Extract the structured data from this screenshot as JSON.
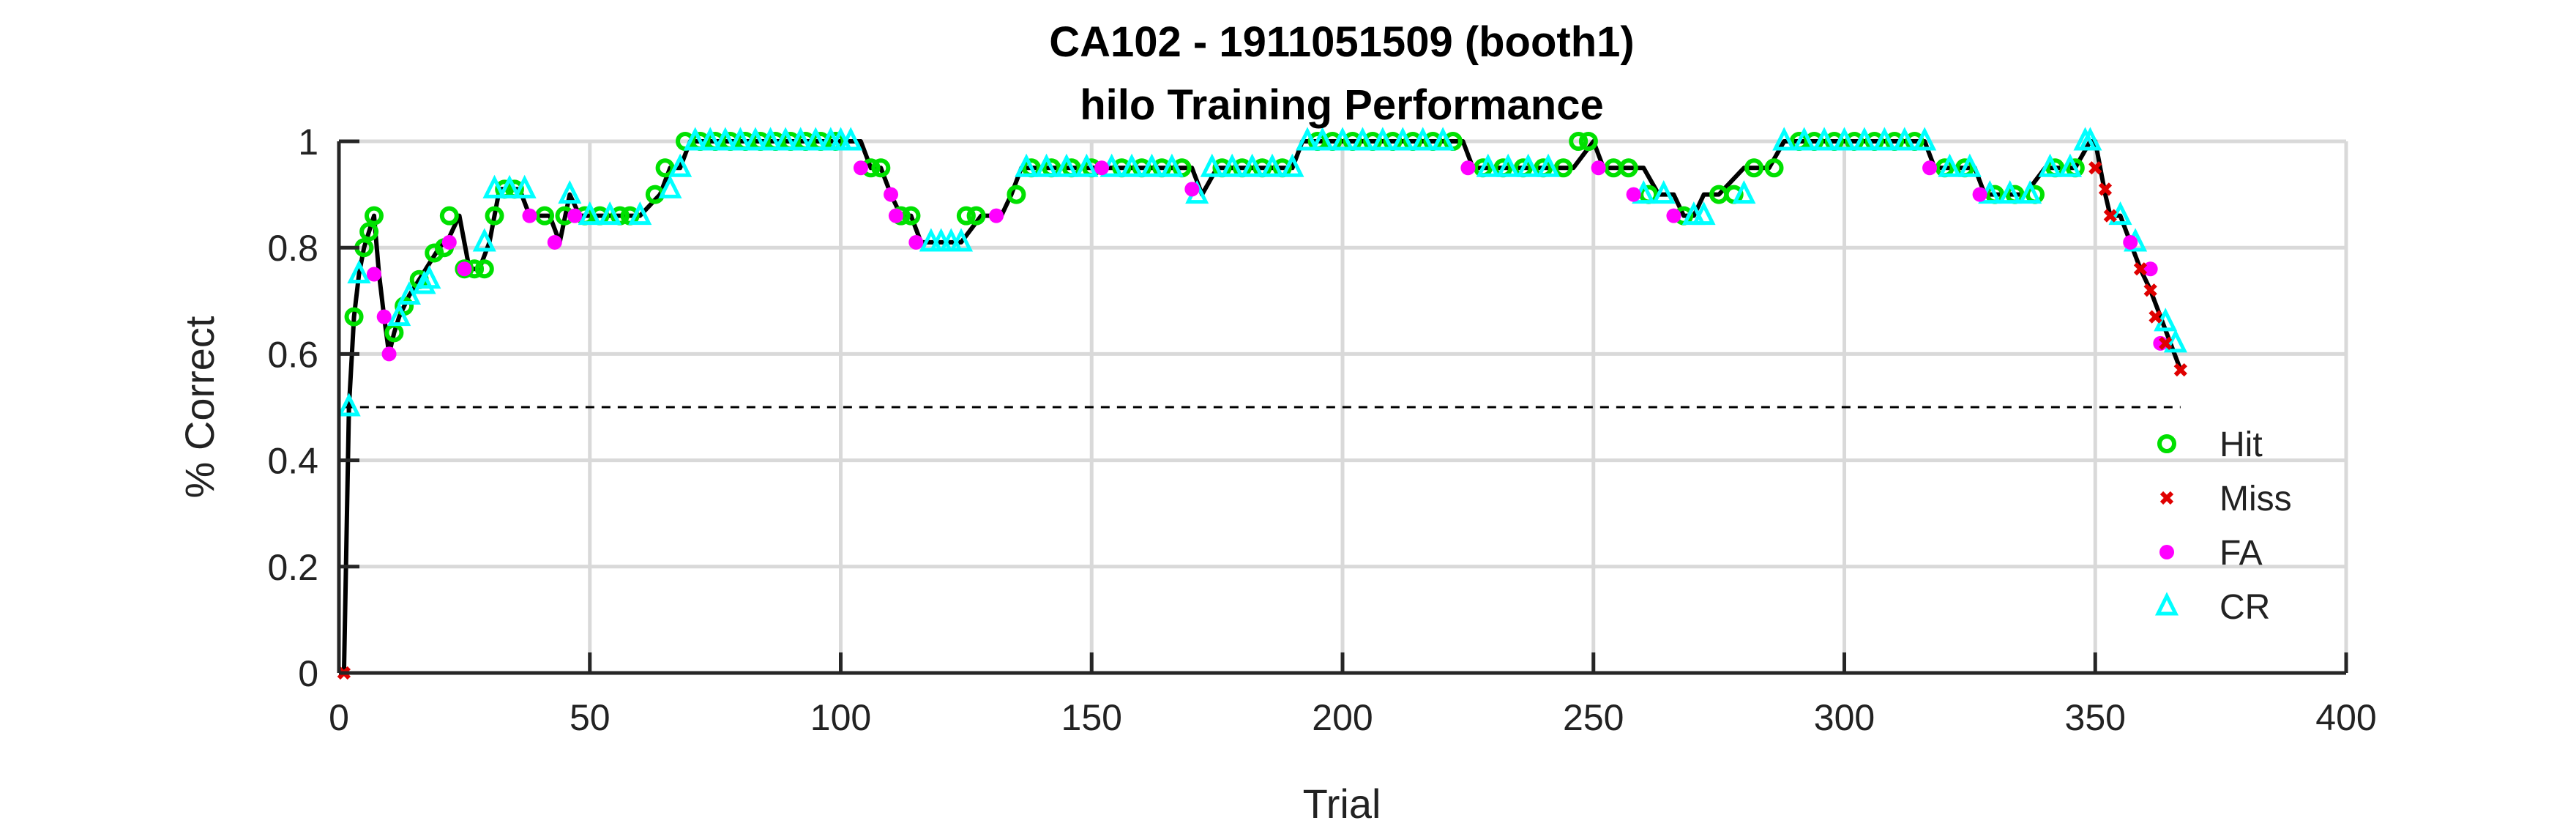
{
  "chart_data": {
    "type": "scatter",
    "title": "CA102 - 1911051509 (booth1)",
    "subtitle": "hilo Training Performance",
    "xlabel": "Trial",
    "ylabel": "% Correct",
    "xlim": [
      0,
      400
    ],
    "ylim": [
      0,
      1
    ],
    "xticks": [
      "0",
      "50",
      "100",
      "150",
      "200",
      "250",
      "300",
      "350",
      "400"
    ],
    "yticks": [
      "0",
      "0.2",
      "0.4",
      "0.6",
      "0.8",
      "1"
    ],
    "grid": true,
    "legend_position": "bottom-right",
    "chance_level": 0.5,
    "colors": {
      "Hit": "#00e000",
      "Miss": "#e00000",
      "FA": "#ff00ff",
      "CR": "#00ffff",
      "line": "#000000"
    },
    "line": {
      "x": [
        1,
        2,
        3,
        4,
        5,
        6,
        7,
        8,
        9,
        10,
        11,
        12,
        14,
        16,
        18,
        20,
        22,
        24,
        26,
        28,
        30,
        32,
        34,
        36,
        38,
        40,
        42,
        44,
        46,
        48,
        50,
        55,
        60,
        64,
        66,
        68,
        70,
        80,
        90,
        100,
        104,
        106,
        108,
        110,
        112,
        114,
        116,
        118,
        120,
        124,
        128,
        130,
        132,
        134,
        136,
        140,
        150,
        160,
        170,
        172,
        175,
        180,
        185,
        190,
        192,
        195,
        200,
        210,
        220,
        224,
        226,
        230,
        240,
        246,
        250,
        252,
        255,
        260,
        263,
        266,
        268,
        270,
        272,
        275,
        280,
        285,
        288,
        290,
        300,
        310,
        316,
        318,
        322,
        326,
        328,
        332,
        336,
        340,
        346,
        349,
        350,
        351,
        352,
        353,
        355,
        357,
        359,
        361,
        363,
        365,
        367
      ],
      "y": [
        0,
        0.5,
        0.67,
        0.75,
        0.8,
        0.83,
        0.86,
        0.75,
        0.67,
        0.6,
        0.64,
        0.67,
        0.71,
        0.74,
        0.77,
        0.8,
        0.82,
        0.86,
        0.76,
        0.76,
        0.81,
        0.91,
        0.91,
        0.91,
        0.86,
        0.86,
        0.86,
        0.81,
        0.9,
        0.86,
        0.86,
        0.86,
        0.86,
        0.9,
        0.95,
        0.95,
        1,
        1,
        1,
        1,
        1,
        0.95,
        0.95,
        0.9,
        0.86,
        0.86,
        0.81,
        0.81,
        0.81,
        0.81,
        0.86,
        0.86,
        0.86,
        0.9,
        0.95,
        0.95,
        0.95,
        0.95,
        0.95,
        0.9,
        0.95,
        0.95,
        0.95,
        0.95,
        1,
        1,
        1,
        1,
        1,
        1,
        0.95,
        0.95,
        0.95,
        0.95,
        1,
        0.95,
        0.95,
        0.95,
        0.9,
        0.9,
        0.86,
        0.86,
        0.9,
        0.9,
        0.95,
        0.95,
        1,
        1,
        1,
        1,
        1,
        0.95,
        0.95,
        0.95,
        0.9,
        0.9,
        0.9,
        0.95,
        0.95,
        1,
        1,
        0.95,
        0.9,
        0.86,
        0.86,
        0.81,
        0.76,
        0.72,
        0.67,
        0.62,
        0.57
      ]
    },
    "series": [
      {
        "name": "Hit",
        "marker": "circle",
        "x": [
          3,
          5,
          6,
          7,
          11,
          13,
          16,
          19,
          21,
          22,
          25,
          27,
          29,
          31,
          33,
          35,
          41,
          45,
          49,
          52,
          56,
          58,
          63,
          65,
          69,
          72,
          75,
          78,
          81,
          84,
          87,
          90,
          93,
          96,
          99,
          106,
          108,
          112,
          114,
          125,
          127,
          135,
          138,
          142,
          146,
          150,
          156,
          160,
          164,
          168,
          176,
          180,
          184,
          188,
          195,
          198,
          202,
          206,
          210,
          214,
          218,
          222,
          228,
          232,
          236,
          240,
          244,
          247,
          249,
          254,
          257,
          261,
          268,
          275,
          278,
          282,
          286,
          291,
          294,
          298,
          302,
          306,
          310,
          314,
          320,
          324,
          330,
          334,
          338,
          342,
          346
        ],
        "y": [
          0.67,
          0.8,
          0.83,
          0.86,
          0.64,
          0.69,
          0.74,
          0.79,
          0.8,
          0.86,
          0.76,
          0.76,
          0.76,
          0.86,
          0.91,
          0.91,
          0.86,
          0.86,
          0.86,
          0.86,
          0.86,
          0.86,
          0.9,
          0.95,
          1,
          1,
          1,
          1,
          1,
          1,
          1,
          1,
          1,
          1,
          1,
          0.95,
          0.95,
          0.86,
          0.86,
          0.86,
          0.86,
          0.9,
          0.95,
          0.95,
          0.95,
          0.95,
          0.95,
          0.95,
          0.95,
          0.95,
          0.95,
          0.95,
          0.95,
          0.95,
          1,
          1,
          1,
          1,
          1,
          1,
          1,
          1,
          0.95,
          0.95,
          0.95,
          0.95,
          0.95,
          1,
          1,
          0.95,
          0.95,
          0.9,
          0.86,
          0.9,
          0.9,
          0.95,
          0.95,
          1,
          1,
          1,
          1,
          1,
          1,
          1,
          0.95,
          0.95,
          0.9,
          0.9,
          0.9,
          0.95,
          0.95
        ]
      },
      {
        "name": "Miss",
        "marker": "x",
        "x": [
          1,
          350,
          352,
          353,
          359,
          361,
          362,
          364,
          367
        ],
        "y": [
          0,
          0.95,
          0.91,
          0.86,
          0.76,
          0.72,
          0.67,
          0.62,
          0.57
        ]
      },
      {
        "name": "FA",
        "marker": "dot",
        "x": [
          7,
          9,
          10,
          22,
          25,
          38,
          43,
          47,
          104,
          110,
          111,
          115,
          131,
          152,
          170,
          225,
          251,
          258,
          266,
          317,
          327,
          357,
          361,
          363
        ],
        "y": [
          0.75,
          0.67,
          0.6,
          0.81,
          0.76,
          0.86,
          0.81,
          0.86,
          0.95,
          0.9,
          0.86,
          0.81,
          0.86,
          0.95,
          0.91,
          0.95,
          0.95,
          0.9,
          0.86,
          0.95,
          0.9,
          0.81,
          0.76,
          0.62
        ]
      },
      {
        "name": "CR",
        "marker": "triangle",
        "x": [
          2,
          4,
          12,
          14,
          17,
          18,
          29,
          31,
          34,
          37,
          46,
          50,
          54,
          60,
          66,
          68,
          71,
          74,
          77,
          80,
          83,
          86,
          89,
          92,
          95,
          98,
          100,
          102,
          118,
          120,
          122,
          124,
          137,
          141,
          145,
          149,
          154,
          158,
          162,
          166,
          171,
          174,
          178,
          182,
          186,
          190,
          193,
          196,
          200,
          204,
          208,
          212,
          216,
          220,
          229,
          233,
          237,
          241,
          260,
          264,
          270,
          272,
          280,
          288,
          292,
          296,
          300,
          304,
          308,
          312,
          316,
          321,
          325,
          329,
          333,
          337,
          341,
          345,
          348,
          349,
          355,
          358,
          364,
          366
        ],
        "y": [
          0.5,
          0.75,
          0.67,
          0.71,
          0.73,
          0.74,
          0.81,
          0.91,
          0.91,
          0.91,
          0.9,
          0.86,
          0.86,
          0.86,
          0.91,
          0.95,
          1,
          1,
          1,
          1,
          1,
          1,
          1,
          1,
          1,
          1,
          1,
          1,
          0.81,
          0.81,
          0.81,
          0.81,
          0.95,
          0.95,
          0.95,
          0.95,
          0.95,
          0.95,
          0.95,
          0.95,
          0.9,
          0.95,
          0.95,
          0.95,
          0.95,
          0.95,
          1,
          1,
          1,
          1,
          1,
          1,
          1,
          1,
          0.95,
          0.95,
          0.95,
          0.95,
          0.9,
          0.9,
          0.86,
          0.86,
          0.9,
          1,
          1,
          1,
          1,
          1,
          1,
          1,
          1,
          0.95,
          0.95,
          0.9,
          0.9,
          0.9,
          0.95,
          0.95,
          1,
          1,
          0.86,
          0.81,
          0.66,
          0.62
        ]
      }
    ]
  }
}
